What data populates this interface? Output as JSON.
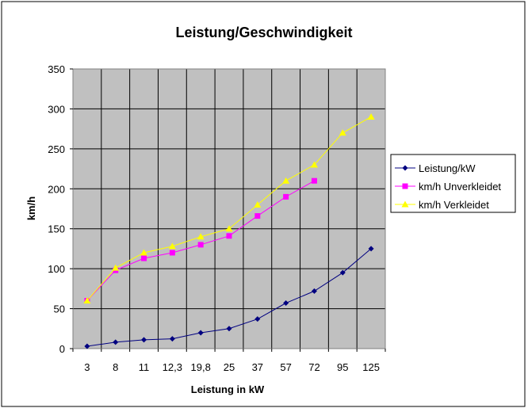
{
  "chart_data": {
    "type": "line",
    "title": "Leistung/Geschwindigkeit",
    "xlabel": "Leistung in kW",
    "ylabel": "km/h",
    "ylim": [
      0,
      350
    ],
    "yticks": [
      0,
      50,
      100,
      150,
      200,
      250,
      300,
      350
    ],
    "grid": true,
    "legend": "right",
    "categories": [
      "3",
      "8",
      "11",
      "12,3",
      "19,8",
      "25",
      "37",
      "57",
      "72",
      "95",
      "125"
    ],
    "series": [
      {
        "name": "Leistung/kW",
        "color": "#000080",
        "marker": "diamond",
        "values": [
          3,
          8,
          11,
          12.3,
          19.8,
          25,
          37,
          57,
          72,
          95,
          125
        ]
      },
      {
        "name": "km/h Unverkleidet",
        "color": "#FF00FF",
        "marker": "square",
        "values": [
          60,
          98,
          113,
          120,
          130,
          141,
          166,
          190,
          210,
          null,
          null
        ]
      },
      {
        "name": "km/h Verkleidet",
        "color": "#FFFF00",
        "marker": "triangle",
        "values": [
          60,
          101,
          120,
          128,
          140,
          150,
          180,
          210,
          230,
          270,
          290
        ]
      }
    ]
  }
}
